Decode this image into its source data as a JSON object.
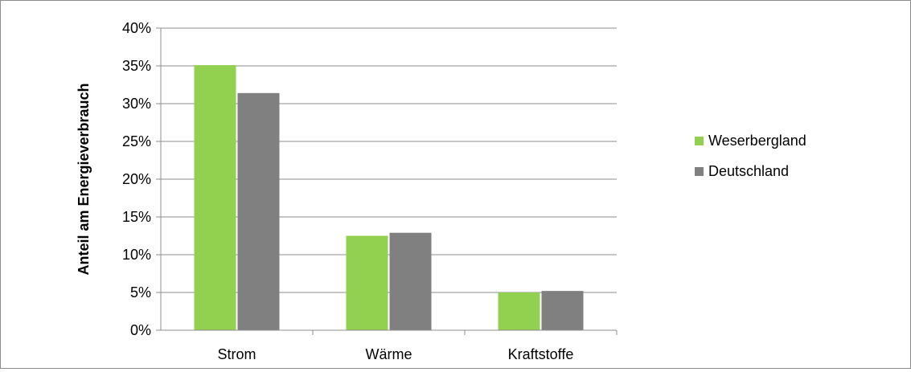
{
  "chart_data": {
    "type": "bar",
    "title": "",
    "xlabel": "",
    "ylabel": "Anteil am Energieverbrauch",
    "categories": [
      "Strom",
      "Wärme",
      "Kraftstoffe"
    ],
    "series": [
      {
        "name": "Weserbergland",
        "color": "#92d050",
        "values": [
          35.1,
          12.5,
          5.0
        ]
      },
      {
        "name": "Deutschland",
        "color": "#808080",
        "values": [
          31.4,
          12.9,
          5.2
        ]
      }
    ],
    "ylim": [
      0,
      40
    ],
    "yticks": [
      0,
      5,
      10,
      15,
      20,
      25,
      30,
      35,
      40
    ],
    "ytick_labels": [
      "0%",
      "5%",
      "10%",
      "15%",
      "20%",
      "25%",
      "30%",
      "35%",
      "40%"
    ],
    "grid": true,
    "legend_position": "right"
  }
}
